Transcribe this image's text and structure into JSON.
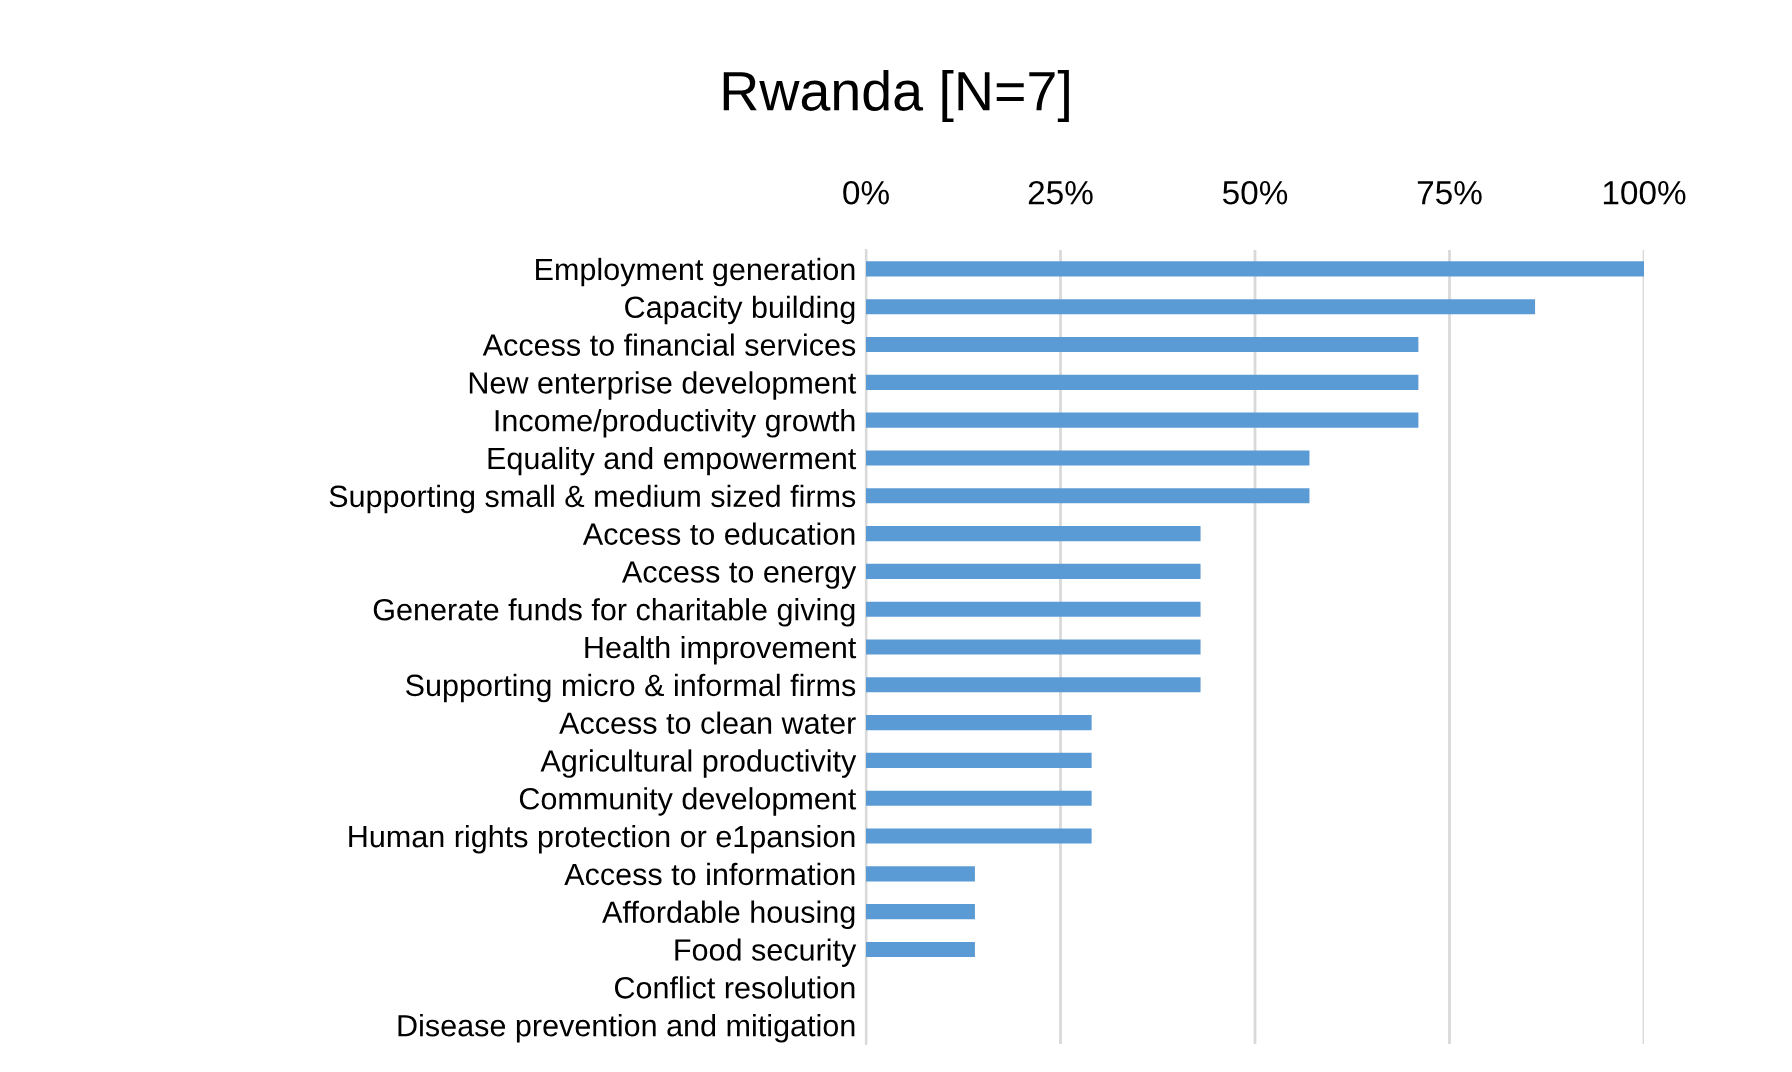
{
  "chart_data": {
    "type": "bar",
    "orientation": "horizontal",
    "title": "Rwanda [N=7]",
    "categories": [
      "Employment generation",
      "Capacity building",
      "Access to financial services",
      "New enterprise development",
      "Income/productivity growth",
      "Equality and empowerment",
      "Supporting small & medium sized firms",
      "Access to education",
      "Access to energy",
      "Generate funds for charitable giving",
      "Health improvement",
      "Supporting micro & informal firms",
      "Access to clean water",
      "Agricultural productivity",
      "Community development",
      "Human rights protection or e1pansion",
      "Access to information",
      "Affordable housing",
      "Food security",
      "Conflict resolution",
      "Disease prevention and mitigation"
    ],
    "values": [
      100,
      86,
      71,
      71,
      71,
      57,
      57,
      43,
      43,
      43,
      43,
      43,
      29,
      29,
      29,
      29,
      14,
      14,
      14,
      0,
      0
    ],
    "color": "#5b9bd5",
    "xlim": [
      0,
      100
    ],
    "xticks": [
      {
        "value": 0,
        "label": "0%"
      },
      {
        "value": 25,
        "label": "25%"
      },
      {
        "value": 50,
        "label": "50%"
      },
      {
        "value": 75,
        "label": "75%"
      },
      {
        "value": 100,
        "label": "100%"
      }
    ],
    "grid": "x"
  }
}
